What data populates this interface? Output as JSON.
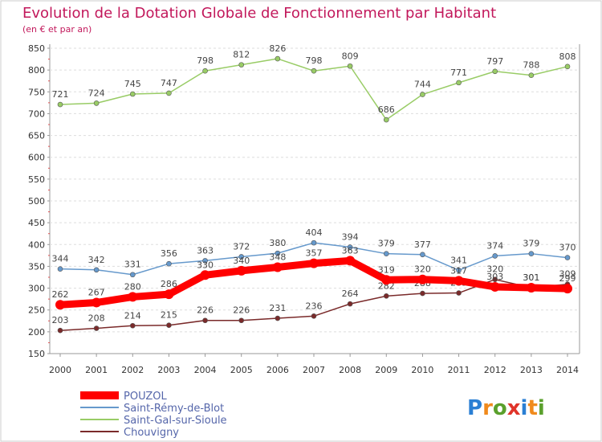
{
  "chart_data": {
    "type": "line",
    "title": "Evolution de la Dotation Globale de Fonctionnement par Habitant",
    "subtitle": "(en € et par an)",
    "x": [
      "2000",
      "2001",
      "2002",
      "2003",
      "2004",
      "2005",
      "2006",
      "2007",
      "2008",
      "2009",
      "2010",
      "2011",
      "2012",
      "2013",
      "2014"
    ],
    "y_ticks": [
      "150",
      "200",
      "250",
      "300",
      "350",
      "400",
      "450",
      "500",
      "550",
      "600",
      "650",
      "700",
      "750",
      "800",
      "850"
    ],
    "ylim": [
      150,
      850
    ],
    "grid": "horizontal dashed",
    "legend_position": "bottom-left",
    "series": [
      {
        "name": "POUZOL",
        "color": "#ff0000",
        "values": [
          262,
          267,
          280,
          286,
          330,
          340,
          348,
          357,
          363,
          319,
          320,
          317,
          303,
          301,
          299
        ]
      },
      {
        "name": "Saint-Rémy-de-Blot",
        "color": "#6699cc",
        "values": [
          344,
          342,
          331,
          356,
          363,
          372,
          380,
          404,
          394,
          379,
          377,
          341,
          374,
          379,
          370
        ]
      },
      {
        "name": "Saint-Gal-sur-Sioule",
        "color": "#99cc66",
        "values": [
          721,
          724,
          745,
          747,
          798,
          812,
          826,
          798,
          809,
          686,
          744,
          771,
          797,
          788,
          808
        ]
      },
      {
        "name": "Chouvigny",
        "color": "#7a2a2a",
        "values": [
          203,
          208,
          214,
          215,
          226,
          226,
          231,
          236,
          264,
          282,
          288,
          289,
          320,
          301,
          309
        ]
      }
    ]
  },
  "branding": {
    "logo_text": "Proxiti"
  }
}
